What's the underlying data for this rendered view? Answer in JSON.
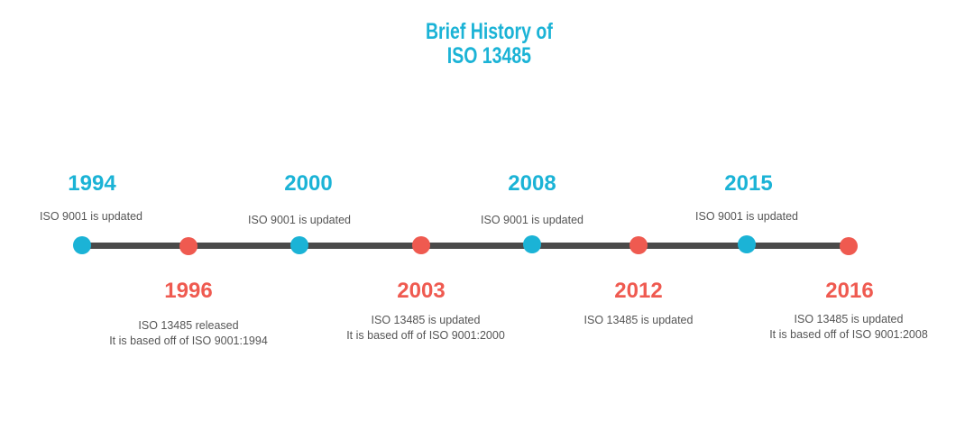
{
  "title": {
    "line1": "Brief History of",
    "line2": "ISO 13485"
  },
  "colors": {
    "iso9001": "#1bb3d6",
    "iso13485": "#ef5a50",
    "track": "#4a4a4a"
  },
  "events": [
    {
      "year": "1994",
      "line1": "ISO 9001 is updated",
      "line2": ""
    },
    {
      "year": "1996",
      "line1": "ISO 13485 released",
      "line2": "It is based off of ISO 9001:1994"
    },
    {
      "year": "2000",
      "line1": "ISO 9001 is updated",
      "line2": ""
    },
    {
      "year": "2003",
      "line1": "ISO 13485 is updated",
      "line2": "It is based off of ISO 9001:2000"
    },
    {
      "year": "2008",
      "line1": "ISO 9001 is updated",
      "line2": ""
    },
    {
      "year": "2012",
      "line1": "ISO 13485 is updated",
      "line2": ""
    },
    {
      "year": "2015",
      "line1": "ISO 9001 is updated",
      "line2": ""
    },
    {
      "year": "2016",
      "line1": "ISO 13485 is updated",
      "line2": "It is based off of ISO 9001:2008"
    }
  ]
}
